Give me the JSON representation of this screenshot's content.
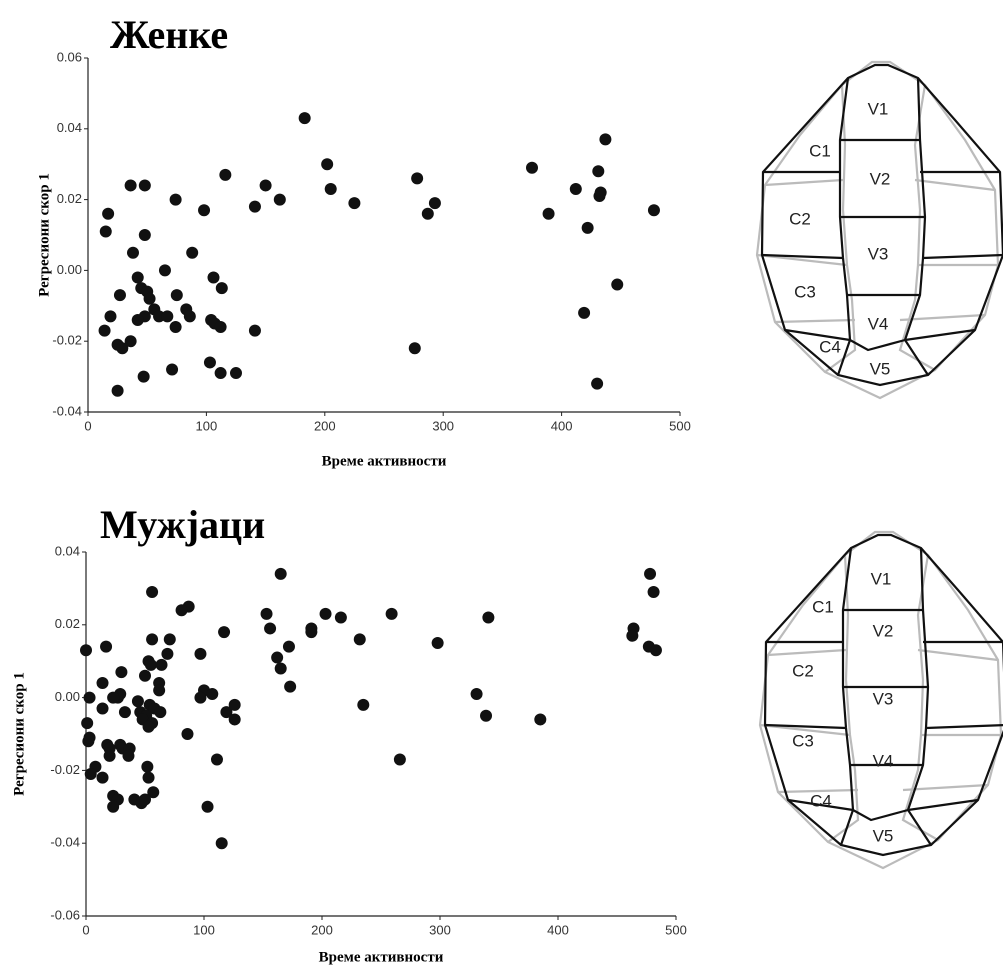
{
  "chart_data": [
    {
      "type": "scatter",
      "title": "Женке",
      "x_label": "Време активности",
      "y_label": "Регресиони скор 1",
      "xlim": [
        0,
        500
      ],
      "ylim": [
        -0.04,
        0.06
      ],
      "xticks": [
        0,
        100,
        200,
        300,
        400,
        500
      ],
      "yticks": [
        -0.04,
        -0.02,
        {
          "value": 0,
          "label": "0.00"
        },
        0.02,
        0.04,
        0.06
      ],
      "color": "#111111",
      "x": [
        183,
        437,
        375,
        202,
        431,
        412,
        278,
        116,
        36,
        48,
        150,
        205,
        74,
        162,
        293,
        432,
        433,
        141,
        225,
        287,
        17,
        98,
        389,
        478,
        15,
        48,
        422,
        38,
        88,
        65,
        42,
        106,
        45,
        113,
        447,
        50,
        27,
        75,
        52,
        56,
        83,
        86,
        48,
        60,
        67,
        19,
        42,
        104,
        107,
        74,
        112,
        419,
        141,
        14,
        25,
        36,
        29,
        276,
        103,
        71,
        47,
        112,
        125,
        430,
        25
      ],
      "values": [
        0.043,
        0.037,
        0.029,
        0.03,
        0.028,
        0.023,
        0.026,
        0.027,
        0.024,
        0.024,
        0.024,
        0.023,
        0.02,
        0.02,
        0.019,
        0.021,
        0.022,
        0.018,
        0.019,
        0.016,
        0.016,
        0.017,
        0.016,
        0.017,
        0.011,
        0.01,
        0.012,
        0.005,
        0.005,
        0.0,
        -0.002,
        -0.002,
        -0.005,
        -0.005,
        -0.004,
        -0.006,
        -0.007,
        -0.007,
        -0.008,
        -0.011,
        -0.011,
        -0.013,
        -0.013,
        -0.013,
        -0.013,
        -0.013,
        -0.014,
        -0.014,
        -0.015,
        -0.016,
        -0.016,
        -0.012,
        -0.017,
        -0.017,
        -0.021,
        -0.02,
        -0.022,
        -0.022,
        -0.026,
        -0.028,
        -0.03,
        -0.029,
        -0.029,
        -0.032,
        -0.034
      ]
    },
    {
      "type": "scatter",
      "title": "Мужјаци",
      "x_label": "Време активности",
      "y_label": "Регресиони скор 1",
      "xlim": [
        0,
        500
      ],
      "ylim": [
        -0.06,
        0.04
      ],
      "xticks": [
        0,
        100,
        200,
        300,
        400,
        500
      ],
      "yticks": [
        -0.06,
        -0.04,
        -0.02,
        {
          "value": 0,
          "label": "0.00"
        },
        0.02,
        0.04
      ],
      "color": "#111111",
      "x": [
        165,
        478,
        56,
        481,
        87,
        81,
        153,
        203,
        216,
        259,
        341,
        156,
        117,
        464,
        463,
        191,
        191,
        232,
        172,
        298,
        477,
        483,
        56,
        71,
        0,
        17,
        69,
        97,
        53,
        55,
        64,
        14,
        162,
        165,
        30,
        50,
        100,
        62,
        173,
        107,
        3,
        27,
        29,
        23,
        44,
        331,
        97,
        62,
        14,
        54,
        58,
        63,
        33,
        119,
        126,
        235,
        339,
        385,
        46,
        51,
        48,
        56,
        126,
        53,
        1,
        86,
        2,
        3,
        18,
        29,
        31,
        37,
        20,
        20,
        36,
        8,
        4,
        14,
        111,
        266,
        52,
        53,
        57,
        23,
        27,
        23,
        41,
        47,
        50,
        103,
        115
      ],
      "values": [
        0.034,
        0.034,
        0.029,
        0.029,
        0.025,
        0.024,
        0.023,
        0.023,
        0.022,
        0.023,
        0.022,
        0.019,
        0.018,
        0.019,
        0.017,
        0.019,
        0.018,
        0.016,
        0.014,
        0.015,
        0.014,
        0.013,
        0.016,
        0.016,
        0.013,
        0.014,
        0.012,
        0.012,
        0.01,
        0.009,
        0.009,
        0.004,
        0.011,
        0.008,
        0.007,
        0.006,
        0.002,
        0.004,
        0.003,
        0.001,
        0.0,
        0.0,
        0.001,
        0.0,
        -0.001,
        0.001,
        0.0,
        0.002,
        -0.003,
        -0.002,
        -0.003,
        -0.004,
        -0.004,
        -0.004,
        -0.002,
        -0.002,
        -0.005,
        -0.006,
        -0.004,
        -0.005,
        -0.006,
        -0.007,
        -0.006,
        -0.008,
        -0.007,
        -0.01,
        -0.012,
        -0.011,
        -0.013,
        -0.013,
        -0.014,
        -0.014,
        -0.014,
        -0.016,
        -0.016,
        -0.019,
        -0.021,
        -0.022,
        -0.017,
        -0.017,
        -0.019,
        -0.022,
        -0.026,
        -0.027,
        -0.028,
        -0.03,
        -0.028,
        -0.029,
        -0.028,
        -0.03,
        -0.04
      ]
    }
  ],
  "diagrams": [
    {
      "labels": [
        "V1",
        "C1",
        "V2",
        "C2",
        "V3",
        "C3",
        "V4",
        "C4",
        "V5"
      ]
    },
    {
      "labels": [
        "V1",
        "C1",
        "V2",
        "C2",
        "V3",
        "C3",
        "V4",
        "C4",
        "V5"
      ]
    }
  ]
}
